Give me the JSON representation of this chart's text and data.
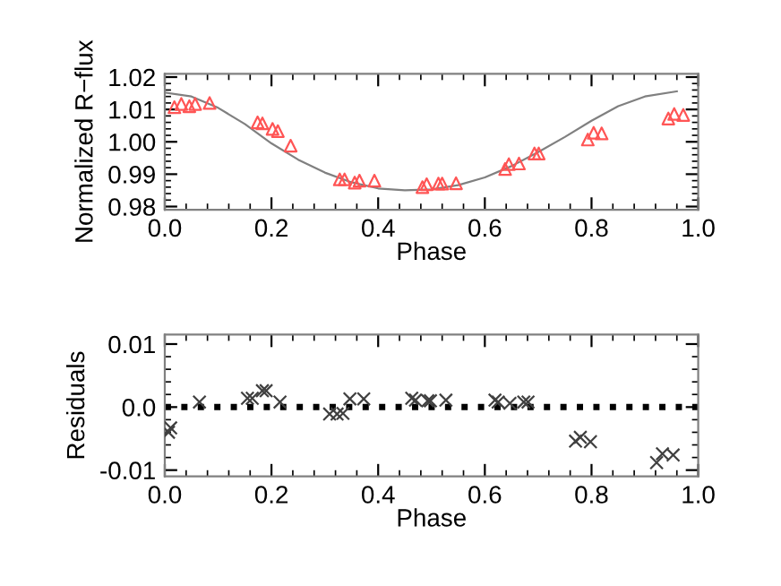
{
  "chart_data": [
    {
      "type": "scatter",
      "xlabel": "Phase",
      "ylabel": "Normalized R−flux",
      "xlim": [
        0.0,
        1.0
      ],
      "ylim": [
        0.979,
        1.021
      ],
      "xticks": [
        {
          "value": 0.0,
          "label": "0.0"
        },
        {
          "value": 0.2,
          "label": "0.2"
        },
        {
          "value": 0.4,
          "label": "0.4"
        },
        {
          "value": 0.6,
          "label": "0.6"
        },
        {
          "value": 0.8,
          "label": "0.8"
        },
        {
          "value": 1.0,
          "label": "1.0"
        }
      ],
      "yticks": [
        {
          "value": 0.98,
          "label": "0.98"
        },
        {
          "value": 0.99,
          "label": "0.99"
        },
        {
          "value": 1.0,
          "label": "1.00"
        },
        {
          "value": 1.01,
          "label": "1.01"
        },
        {
          "value": 1.02,
          "label": "1.02"
        }
      ],
      "grid": false,
      "legend": false,
      "series": [
        {
          "marker": "triangle",
          "color": "#ff5555",
          "x": [
            0.018,
            0.031,
            0.046,
            0.057,
            0.084,
            0.174,
            0.183,
            0.202,
            0.212,
            0.236,
            0.328,
            0.337,
            0.356,
            0.365,
            0.393,
            0.483,
            0.491,
            0.513,
            0.52,
            0.546,
            0.638,
            0.645,
            0.664,
            0.693,
            0.701,
            0.793,
            0.804,
            0.819,
            0.944,
            0.955,
            0.972
          ],
          "values": [
            1.0107,
            1.0117,
            1.011,
            1.0117,
            1.012,
            1.006,
            1.0057,
            1.004,
            1.0033,
            0.9988,
            0.9884,
            0.9884,
            0.9874,
            0.988,
            0.988,
            0.986,
            0.9869,
            0.9871,
            0.9871,
            0.9872,
            0.9916,
            0.9931,
            0.9933,
            0.9964,
            0.9964,
            1.0007,
            1.0028,
            1.0026,
            1.0072,
            1.0086,
            1.0083
          ]
        },
        {
          "type": "line",
          "marker": "none",
          "line_style": "solid",
          "color": "#808080",
          "x": [
            0.0,
            0.05,
            0.1,
            0.15,
            0.2,
            0.25,
            0.3,
            0.35,
            0.4,
            0.45,
            0.5,
            0.55,
            0.6,
            0.65,
            0.7,
            0.75,
            0.8,
            0.85,
            0.9,
            0.96
          ],
          "values": [
            1.0152,
            1.014,
            1.0105,
            1.0055,
            0.9995,
            0.9945,
            0.9905,
            0.9875,
            0.9856,
            0.985,
            0.9853,
            0.9866,
            0.989,
            0.9925,
            0.9968,
            1.0015,
            1.0065,
            1.011,
            1.014,
            1.0156
          ]
        }
      ]
    },
    {
      "type": "scatter",
      "xlabel": "Phase",
      "ylabel": "Residuals",
      "xlim": [
        0.0,
        1.0
      ],
      "ylim": [
        -0.011,
        0.0115
      ],
      "xticks": [
        {
          "value": 0.0,
          "label": "0.0"
        },
        {
          "value": 0.2,
          "label": "0.2"
        },
        {
          "value": 0.4,
          "label": "0.4"
        },
        {
          "value": 0.6,
          "label": "0.6"
        },
        {
          "value": 0.8,
          "label": "0.8"
        },
        {
          "value": 1.0,
          "label": "1.0"
        }
      ],
      "yticks": [
        {
          "value": -0.01,
          "label": "-0.01"
        },
        {
          "value": 0.0,
          "label": "0.0"
        },
        {
          "value": 0.01,
          "label": "0.01"
        }
      ],
      "grid": false,
      "legend": false,
      "ref_lines": [
        {
          "axis": "y",
          "value": 0.0,
          "color": "#000000",
          "line_style": "dotted"
        }
      ],
      "series": [
        {
          "marker": "cross",
          "color": "#404040",
          "x": [
            0.007,
            0.011,
            0.065,
            0.155,
            0.164,
            0.183,
            0.19,
            0.216,
            0.309,
            0.323,
            0.334,
            0.347,
            0.373,
            0.463,
            0.47,
            0.493,
            0.498,
            0.527,
            0.619,
            0.625,
            0.647,
            0.673,
            0.681,
            0.77,
            0.779,
            0.798,
            0.922,
            0.933,
            0.953
          ],
          "values": [
            -0.004,
            -0.0033,
            0.0008,
            0.0014,
            0.0014,
            0.0026,
            0.0026,
            0.0008,
            -0.0011,
            -0.0011,
            -0.001,
            0.0013,
            0.0013,
            0.0014,
            0.0011,
            0.001,
            0.001,
            0.0011,
            0.0011,
            0.0008,
            0.0006,
            0.0008,
            0.0008,
            -0.0054,
            -0.0048,
            -0.0055,
            -0.0088,
            -0.0074,
            -0.0076
          ]
        }
      ]
    }
  ]
}
